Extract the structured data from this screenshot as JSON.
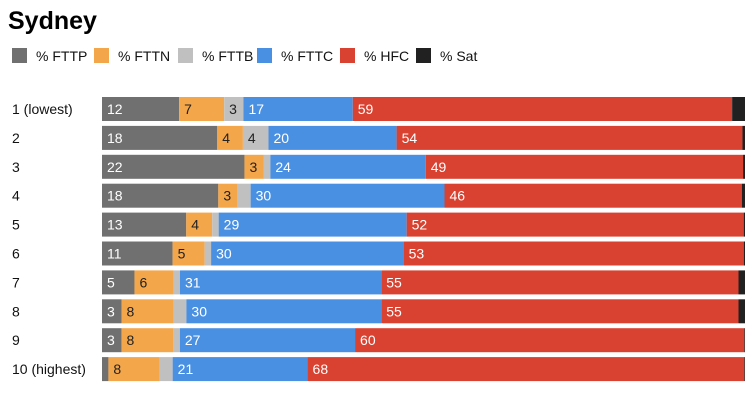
{
  "chart_data": {
    "type": "bar",
    "orientation": "horizontal",
    "stacked": true,
    "title": "Sydney",
    "xlabel": "",
    "ylabel": "",
    "xlim": [
      0,
      100
    ],
    "legend_position": "top-left",
    "grid": false,
    "categories": [
      "1 (lowest)",
      "2",
      "3",
      "4",
      "5",
      "6",
      "7",
      "8",
      "9",
      "10 (highest)"
    ],
    "series": [
      {
        "name": "% FTTP",
        "color": "#707070",
        "label_color": "#ffffff",
        "values": [
          12,
          18,
          22,
          18,
          13,
          11,
          5,
          3,
          3,
          1
        ]
      },
      {
        "name": "% FTTN",
        "color": "#f3a64a",
        "label_color": "#222222",
        "values": [
          7,
          4,
          3,
          3,
          4,
          5,
          6,
          8,
          8,
          8
        ]
      },
      {
        "name": "% FTTB",
        "color": "#c0c0c0",
        "label_color": "#222222",
        "values": [
          3,
          4,
          1,
          2,
          1,
          1,
          1,
          2,
          1,
          2
        ]
      },
      {
        "name": "% FTTC",
        "color": "#4a90e2",
        "label_color": "#ffffff",
        "values": [
          17,
          20,
          24,
          30,
          29,
          30,
          31,
          30,
          27,
          21
        ]
      },
      {
        "name": "% HFC",
        "color": "#d94130",
        "label_color": "#ffffff",
        "values": [
          59,
          54,
          49,
          46,
          52,
          53,
          55,
          55,
          60,
          68
        ]
      },
      {
        "name": "% Sat",
        "color": "#212121",
        "label_color": "#ffffff",
        "values": [
          2,
          0.4,
          0.3,
          0.5,
          0.2,
          0.2,
          1,
          1,
          0.1,
          0.1
        ]
      }
    ],
    "data_labels": [
      [
        "12",
        "7",
        "3",
        "17",
        "59",
        ""
      ],
      [
        "18",
        "4",
        "4",
        "20",
        "54",
        ""
      ],
      [
        "22",
        "3",
        "",
        "24",
        "49",
        ""
      ],
      [
        "18",
        "3",
        "",
        "30",
        "46",
        ""
      ],
      [
        "13",
        "4",
        "",
        "29",
        "52",
        ""
      ],
      [
        "11",
        "5",
        "",
        "30",
        "53",
        ""
      ],
      [
        "5",
        "6",
        "",
        "31",
        "55",
        ""
      ],
      [
        "3",
        "8",
        "",
        "30",
        "55",
        ""
      ],
      [
        "3",
        "8",
        "",
        "27",
        "60",
        ""
      ],
      [
        "",
        "8",
        "",
        "21",
        "68",
        ""
      ]
    ]
  }
}
